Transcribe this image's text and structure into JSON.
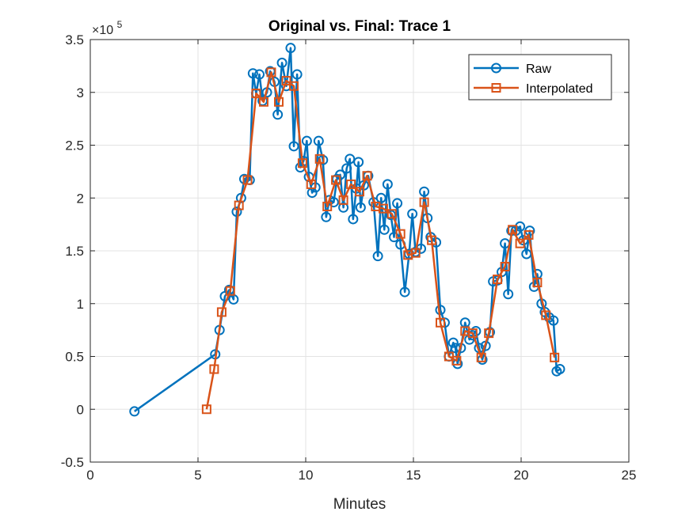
{
  "chart_data": {
    "type": "line",
    "title": "Original vs. Final: Trace 1",
    "xlabel": "Minutes",
    "ylabel": "",
    "xlim": [
      0,
      25
    ],
    "ylim": [
      -0.5,
      3.5
    ],
    "y_exponent_label": "×10",
    "y_exponent_power": "5",
    "xticks": [
      "0",
      "5",
      "10",
      "15",
      "20",
      "25"
    ],
    "yticks": [
      "-0.5",
      "0",
      "0.5",
      "1",
      "1.5",
      "2",
      "2.5",
      "3",
      "3.5"
    ],
    "grid": true,
    "legend_position": "top-right",
    "series": [
      {
        "name": "Raw",
        "color": "#0072BD",
        "marker": "circle",
        "points": [
          [
            2.05,
            -0.02
          ],
          [
            5.8,
            0.52
          ],
          [
            6.0,
            0.75
          ],
          [
            6.25,
            1.07
          ],
          [
            6.45,
            1.13
          ],
          [
            6.65,
            1.04
          ],
          [
            6.8,
            1.87
          ],
          [
            7.0,
            2.0
          ],
          [
            7.15,
            2.18
          ],
          [
            7.4,
            2.17
          ],
          [
            7.55,
            3.18
          ],
          [
            7.7,
            2.99
          ],
          [
            7.85,
            3.17
          ],
          [
            8.0,
            2.92
          ],
          [
            8.2,
            3.0
          ],
          [
            8.35,
            3.2
          ],
          [
            8.55,
            3.1
          ],
          [
            8.7,
            2.79
          ],
          [
            8.9,
            3.28
          ],
          [
            9.1,
            3.06
          ],
          [
            9.3,
            3.42
          ],
          [
            9.45,
            2.49
          ],
          [
            9.6,
            3.17
          ],
          [
            9.75,
            2.29
          ],
          [
            9.9,
            2.35
          ],
          [
            10.05,
            2.54
          ],
          [
            10.15,
            2.2
          ],
          [
            10.3,
            2.05
          ],
          [
            10.45,
            2.1
          ],
          [
            10.6,
            2.54
          ],
          [
            10.8,
            2.36
          ],
          [
            10.95,
            1.82
          ],
          [
            11.1,
            1.98
          ],
          [
            11.3,
            1.96
          ],
          [
            11.45,
            2.18
          ],
          [
            11.6,
            2.22
          ],
          [
            11.75,
            1.91
          ],
          [
            11.9,
            2.28
          ],
          [
            12.05,
            2.37
          ],
          [
            12.2,
            1.8
          ],
          [
            12.35,
            2.09
          ],
          [
            12.45,
            2.34
          ],
          [
            12.55,
            1.91
          ],
          [
            12.7,
            2.12
          ],
          [
            12.9,
            2.21
          ],
          [
            13.15,
            1.96
          ],
          [
            13.35,
            1.45
          ],
          [
            13.5,
            2.0
          ],
          [
            13.65,
            1.7
          ],
          [
            13.8,
            2.13
          ],
          [
            13.95,
            1.84
          ],
          [
            14.1,
            1.63
          ],
          [
            14.25,
            1.95
          ],
          [
            14.4,
            1.56
          ],
          [
            14.6,
            1.11
          ],
          [
            14.8,
            1.47
          ],
          [
            14.95,
            1.85
          ],
          [
            15.1,
            1.49
          ],
          [
            15.35,
            1.52
          ],
          [
            15.5,
            2.06
          ],
          [
            15.65,
            1.81
          ],
          [
            15.8,
            1.63
          ],
          [
            16.05,
            1.58
          ],
          [
            16.25,
            0.94
          ],
          [
            16.45,
            0.82
          ],
          [
            16.65,
            0.5
          ],
          [
            16.85,
            0.63
          ],
          [
            16.95,
            0.58
          ],
          [
            17.05,
            0.43
          ],
          [
            17.2,
            0.58
          ],
          [
            17.4,
            0.82
          ],
          [
            17.6,
            0.66
          ],
          [
            17.75,
            0.7
          ],
          [
            17.9,
            0.74
          ],
          [
            18.05,
            0.58
          ],
          [
            18.2,
            0.47
          ],
          [
            18.35,
            0.6
          ],
          [
            18.55,
            0.73
          ],
          [
            18.7,
            1.21
          ],
          [
            18.9,
            1.22
          ],
          [
            19.1,
            1.3
          ],
          [
            19.25,
            1.57
          ],
          [
            19.4,
            1.09
          ],
          [
            19.55,
            1.69
          ],
          [
            19.75,
            1.69
          ],
          [
            19.95,
            1.73
          ],
          [
            20.1,
            1.6
          ],
          [
            20.25,
            1.47
          ],
          [
            20.4,
            1.69
          ],
          [
            20.6,
            1.16
          ],
          [
            20.75,
            1.28
          ],
          [
            20.95,
            1.0
          ],
          [
            21.1,
            0.92
          ],
          [
            21.3,
            0.87
          ],
          [
            21.5,
            0.84
          ],
          [
            21.65,
            0.36
          ],
          [
            21.8,
            0.38
          ]
        ]
      },
      {
        "name": "Interpolated",
        "color": "#D95319",
        "marker": "square",
        "points": [
          [
            5.4,
            0.0
          ],
          [
            5.75,
            0.38
          ],
          [
            6.1,
            0.92
          ],
          [
            6.5,
            1.12
          ],
          [
            6.9,
            1.93
          ],
          [
            7.3,
            2.17
          ],
          [
            7.7,
            2.99
          ],
          [
            8.05,
            2.91
          ],
          [
            8.4,
            3.19
          ],
          [
            8.75,
            2.91
          ],
          [
            9.1,
            3.11
          ],
          [
            9.45,
            3.06
          ],
          [
            9.85,
            2.33
          ],
          [
            10.25,
            2.13
          ],
          [
            10.65,
            2.37
          ],
          [
            11.0,
            1.92
          ],
          [
            11.4,
            2.17
          ],
          [
            11.75,
            1.98
          ],
          [
            12.1,
            2.13
          ],
          [
            12.5,
            2.06
          ],
          [
            12.85,
            2.21
          ],
          [
            13.25,
            1.92
          ],
          [
            13.6,
            1.9
          ],
          [
            14.0,
            1.85
          ],
          [
            14.4,
            1.66
          ],
          [
            14.75,
            1.46
          ],
          [
            15.1,
            1.48
          ],
          [
            15.5,
            1.96
          ],
          [
            15.85,
            1.6
          ],
          [
            16.25,
            0.82
          ],
          [
            16.65,
            0.5
          ],
          [
            17.0,
            0.46
          ],
          [
            17.4,
            0.74
          ],
          [
            17.75,
            0.72
          ],
          [
            18.15,
            0.49
          ],
          [
            18.5,
            0.72
          ],
          [
            18.9,
            1.23
          ],
          [
            19.25,
            1.35
          ],
          [
            19.6,
            1.7
          ],
          [
            19.95,
            1.57
          ],
          [
            20.35,
            1.65
          ],
          [
            20.75,
            1.2
          ],
          [
            21.15,
            0.89
          ],
          [
            21.55,
            0.49
          ]
        ]
      }
    ]
  }
}
